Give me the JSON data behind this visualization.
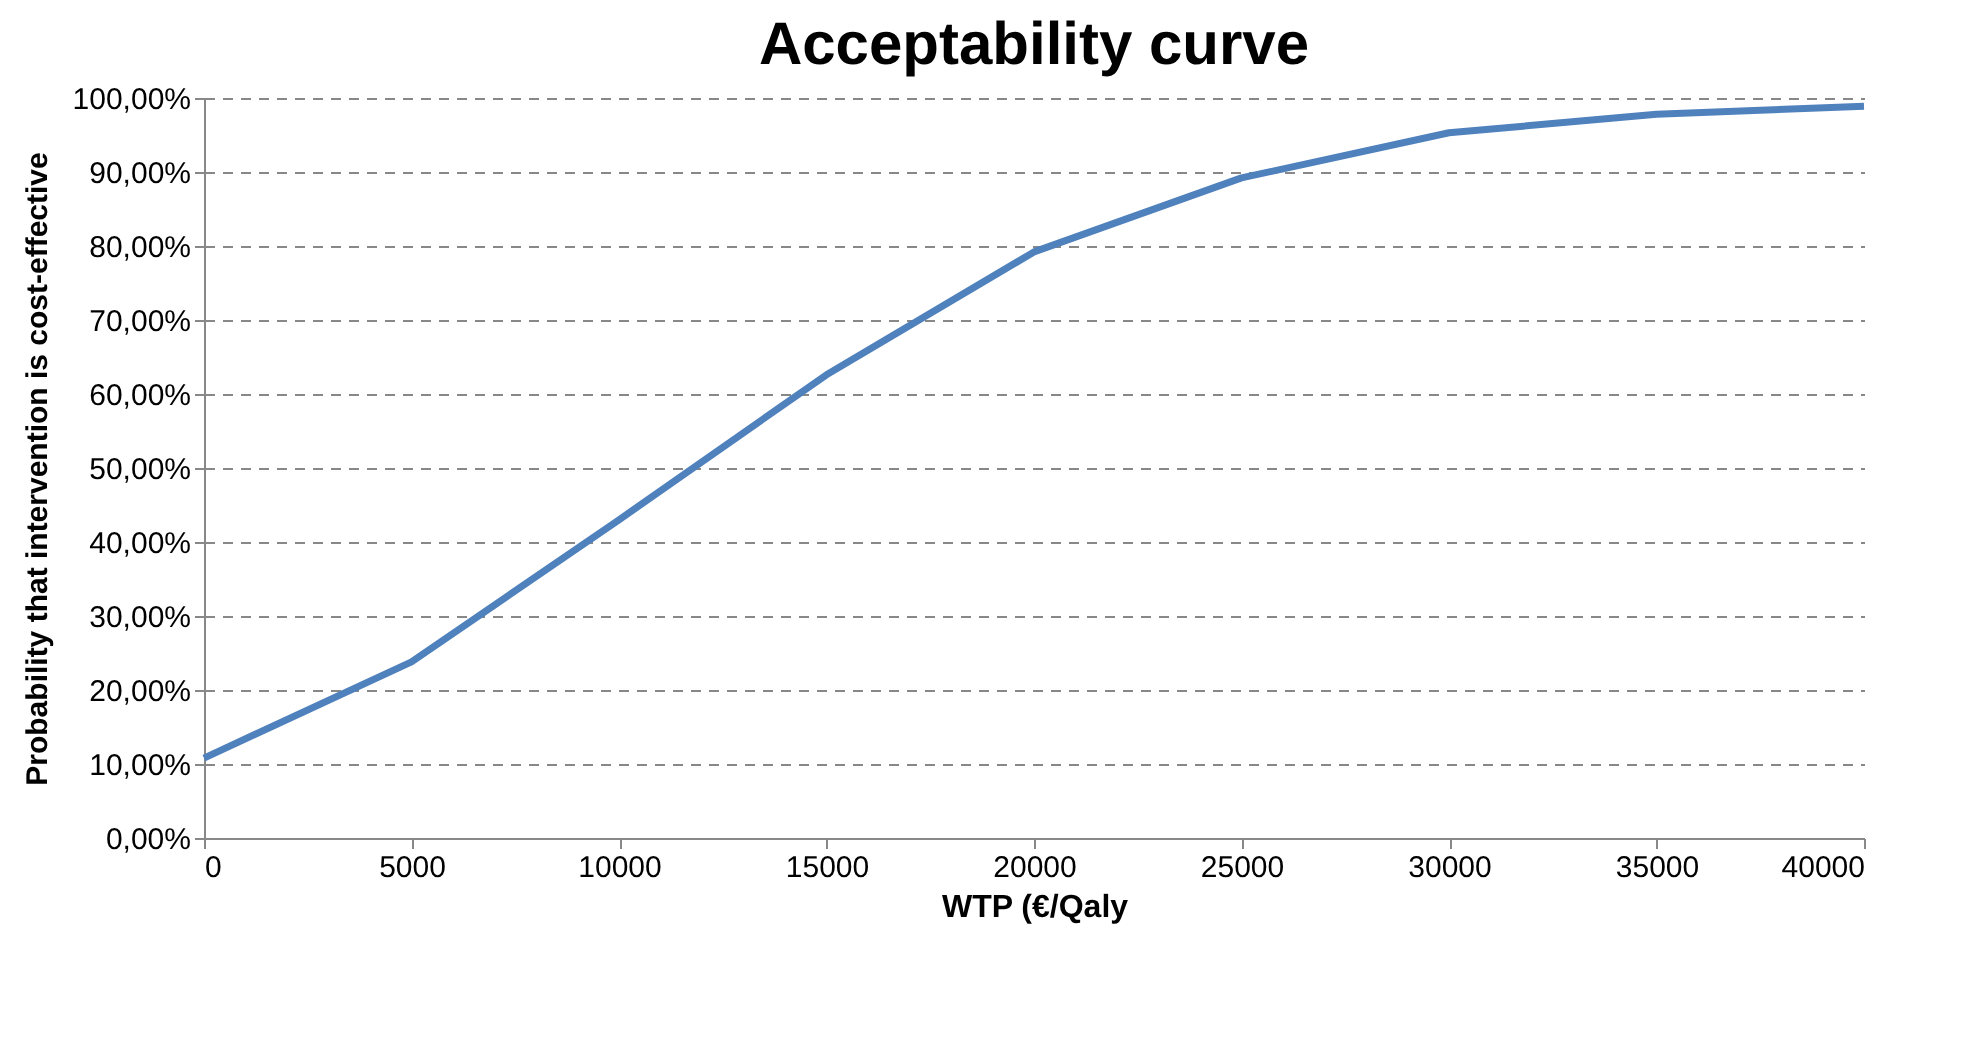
{
  "chart_data": {
    "type": "line",
    "title": "Acceptability curve",
    "xlabel": "WTP (€/Qaly",
    "ylabel": "Probability that intervention is cost-effective",
    "x": [
      0,
      5000,
      10000,
      15000,
      20000,
      25000,
      30000,
      35000,
      40000
    ],
    "series": [
      {
        "color": "#4f81bd",
        "values": [
          10.8,
          23.8,
          43,
          62.6,
          79.2,
          89.2,
          95.3,
          97.8,
          98.9
        ]
      }
    ],
    "xlim": [
      0,
      40000
    ],
    "xticks": [
      0,
      5000,
      10000,
      15000,
      20000,
      25000,
      30000,
      35000,
      40000
    ],
    "ylim": [
      0,
      100
    ],
    "yticks": [
      {
        "value": 0,
        "label": "0,00%"
      },
      {
        "value": 10,
        "label": "10,00%"
      },
      {
        "value": 20,
        "label": "20,00%"
      },
      {
        "value": 30,
        "label": "30,00%"
      },
      {
        "value": 40,
        "label": "40,00%"
      },
      {
        "value": 50,
        "label": "50,00%"
      },
      {
        "value": 60,
        "label": "60,00%"
      },
      {
        "value": 70,
        "label": "70,00%"
      },
      {
        "value": 80,
        "label": "80,00%"
      },
      {
        "value": 90,
        "label": "90,00%"
      },
      {
        "value": 100,
        "label": "100,00%"
      }
    ],
    "grid": "y",
    "marker": "none",
    "line_style": "solid"
  }
}
